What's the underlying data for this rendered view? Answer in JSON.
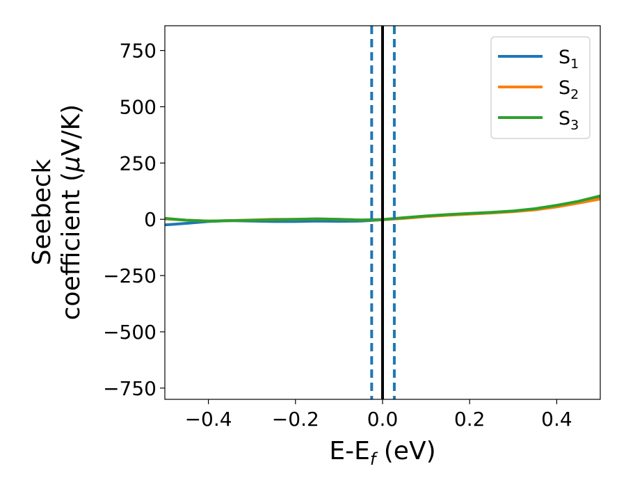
{
  "chart_data": {
    "type": "line",
    "xlabel": {
      "main": "E-E",
      "sub": "f",
      "unit": " (eV)"
    },
    "ylabel": {
      "line1": "Seebeck",
      "line2": "coefficient  (",
      "mu": "μ",
      "unit": "V/K)"
    },
    "xlim": [
      -0.5,
      0.5
    ],
    "ylim": [
      -800,
      860
    ],
    "xticks": [
      -0.4,
      -0.2,
      0.0,
      0.2,
      0.4
    ],
    "xtick_labels": [
      "−0.4",
      "−0.2",
      "0.0",
      "0.2",
      "0.4"
    ],
    "yticks": [
      750,
      500,
      250,
      0,
      -250,
      -500,
      -750
    ],
    "ytick_labels": [
      "750",
      "500",
      "250",
      "0",
      "−250",
      "−500",
      "−750"
    ],
    "grid": false,
    "legend_position": "top-right",
    "series": [
      {
        "name": "S",
        "sub": "1",
        "color": "#1f77b4",
        "x": [
          -0.5,
          -0.45,
          -0.4,
          -0.35,
          -0.3,
          -0.25,
          -0.2,
          -0.15,
          -0.1,
          -0.05,
          0.0,
          0.05,
          0.1,
          0.15,
          0.2,
          0.25,
          0.3,
          0.35,
          0.4,
          0.45,
          0.5
        ],
        "y": [
          -25,
          -18,
          -10,
          -6,
          -8,
          -10,
          -10,
          -8,
          -9,
          -8,
          -2,
          6,
          14,
          20,
          25,
          30,
          36,
          46,
          60,
          78,
          100
        ]
      },
      {
        "name": "S",
        "sub": "2",
        "color": "#ff7f0e",
        "x": [
          -0.5,
          -0.45,
          -0.4,
          -0.35,
          -0.3,
          -0.25,
          -0.2,
          -0.15,
          -0.1,
          -0.05,
          0.0,
          0.05,
          0.1,
          0.15,
          0.2,
          0.25,
          0.3,
          0.35,
          0.4,
          0.45,
          0.5
        ],
        "y": [
          2,
          -4,
          -8,
          -6,
          -3,
          0,
          0,
          2,
          0,
          -3,
          -2,
          4,
          12,
          18,
          23,
          28,
          34,
          42,
          55,
          72,
          90
        ]
      },
      {
        "name": "S",
        "sub": "3",
        "color": "#2ca02c",
        "x": [
          -0.5,
          -0.45,
          -0.4,
          -0.35,
          -0.3,
          -0.25,
          -0.2,
          -0.15,
          -0.1,
          -0.05,
          0.0,
          0.05,
          0.1,
          0.15,
          0.2,
          0.25,
          0.3,
          0.35,
          0.4,
          0.45,
          0.5
        ],
        "y": [
          4,
          -4,
          -8,
          -6,
          -4,
          -2,
          0,
          2,
          0,
          -3,
          -1,
          7,
          15,
          21,
          26,
          31,
          37,
          47,
          62,
          80,
          104
        ]
      }
    ],
    "vlines": [
      {
        "x": 0.0,
        "color": "#000000",
        "style": "solid"
      },
      {
        "x": -0.025,
        "color": "#1f77b4",
        "style": "dashed"
      },
      {
        "x": 0.027,
        "color": "#1f77b4",
        "style": "dashed"
      }
    ]
  }
}
